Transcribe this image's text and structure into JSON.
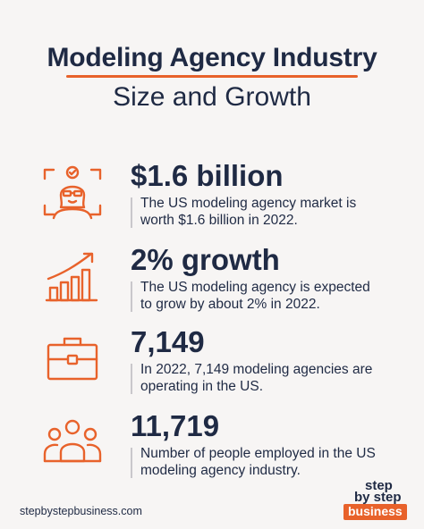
{
  "title": "Modeling Agency Industry",
  "subtitle": "Size and Growth",
  "stats": [
    {
      "icon": "model-portrait-icon",
      "headline": "$1.6 billion",
      "desc": "The US modeling agency market is worth $1.6 billion in 2022."
    },
    {
      "icon": "growth-chart-icon",
      "headline": "2% growth",
      "desc": "The US modeling agency is expected to grow by about 2% in 2022."
    },
    {
      "icon": "briefcase-icon",
      "headline": "7,149",
      "desc": "In 2022, 7,149 modeling agencies are operating in the US."
    },
    {
      "icon": "people-group-icon",
      "headline": "11,719",
      "desc": "Number of people employed in the US modeling agency industry."
    }
  ],
  "footer": {
    "url": "stepbystepbusiness.com"
  },
  "logo": {
    "line1": "step",
    "line2": "by step",
    "line3": "business"
  },
  "colors": {
    "accent": "#e8622b",
    "text": "#1f2a44",
    "background": "#f7f5f4"
  }
}
